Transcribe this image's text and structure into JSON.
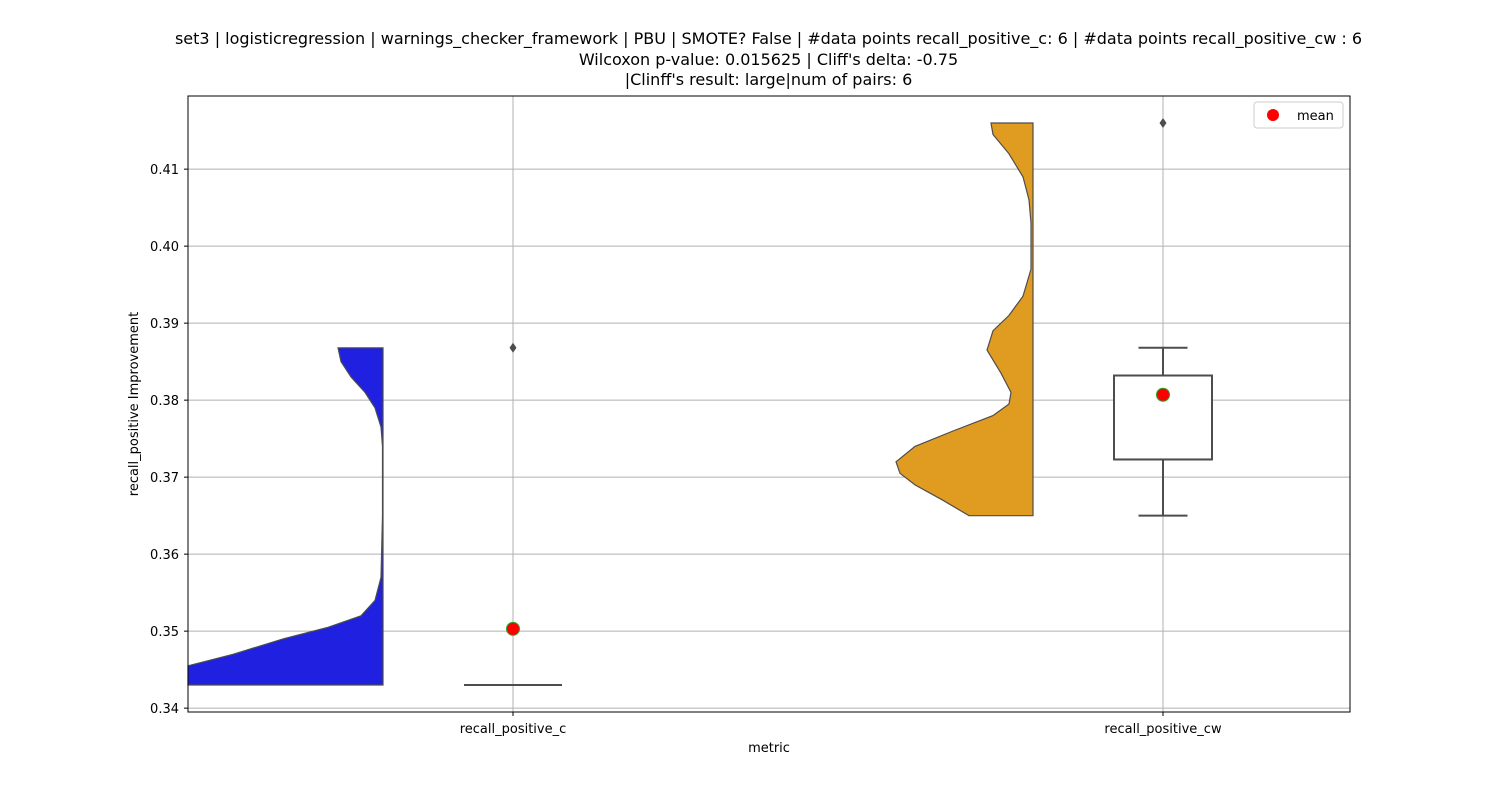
{
  "chart_data": {
    "type": "violin+box",
    "title_lines": [
      "set3 | logisticregression | warnings_checker_framework | PBU | SMOTE? False | #data points recall_positive_c: 6 | #data points recall_positive_cw : 6",
      "Wilcoxon p-value: 0.015625 | Cliff's delta: -0.75",
      "|Clinff's result: large|num of pairs: 6"
    ],
    "xlabel": "metric",
    "ylabel": "recall_positive Improvement",
    "categories": [
      "recall_positive_c",
      "recall_positive_cw"
    ],
    "ylim": [
      0.3395,
      0.4195
    ],
    "yticks": [
      0.34,
      0.35,
      0.36,
      0.37,
      0.38,
      0.39,
      0.4,
      0.41
    ],
    "ytick_labels": [
      "0.34",
      "0.35",
      "0.36",
      "0.37",
      "0.38",
      "0.39",
      "0.40",
      "0.41"
    ],
    "grid": true,
    "legend": {
      "placement": "top-right",
      "entries": [
        "mean"
      ]
    },
    "colors": {
      "violin_c": "#2020e0",
      "violin_cw": "#e09c20",
      "mean_marker": "#ff0000",
      "mean_edge": "#2ca02c",
      "box_line": "#4d4d4d",
      "grid": "#b0b0b0"
    },
    "series": [
      {
        "category": "recall_positive_c",
        "violin_min": 0.343,
        "violin_max": 0.3868,
        "box": {
          "q1": 0.343,
          "median": 0.343,
          "q3": 0.343,
          "whisker_low": 0.343,
          "whisker_high": 0.343
        },
        "outliers": [
          0.3868
        ],
        "mean": 0.3503
      },
      {
        "category": "recall_positive_cw",
        "violin_min": 0.365,
        "violin_max": 0.416,
        "box": {
          "q1": 0.3723,
          "median": 0.3723,
          "q3": 0.3832,
          "whisker_low": 0.365,
          "whisker_high": 0.3868
        },
        "outliers": [
          0.416
        ],
        "mean": 0.3807
      }
    ]
  }
}
